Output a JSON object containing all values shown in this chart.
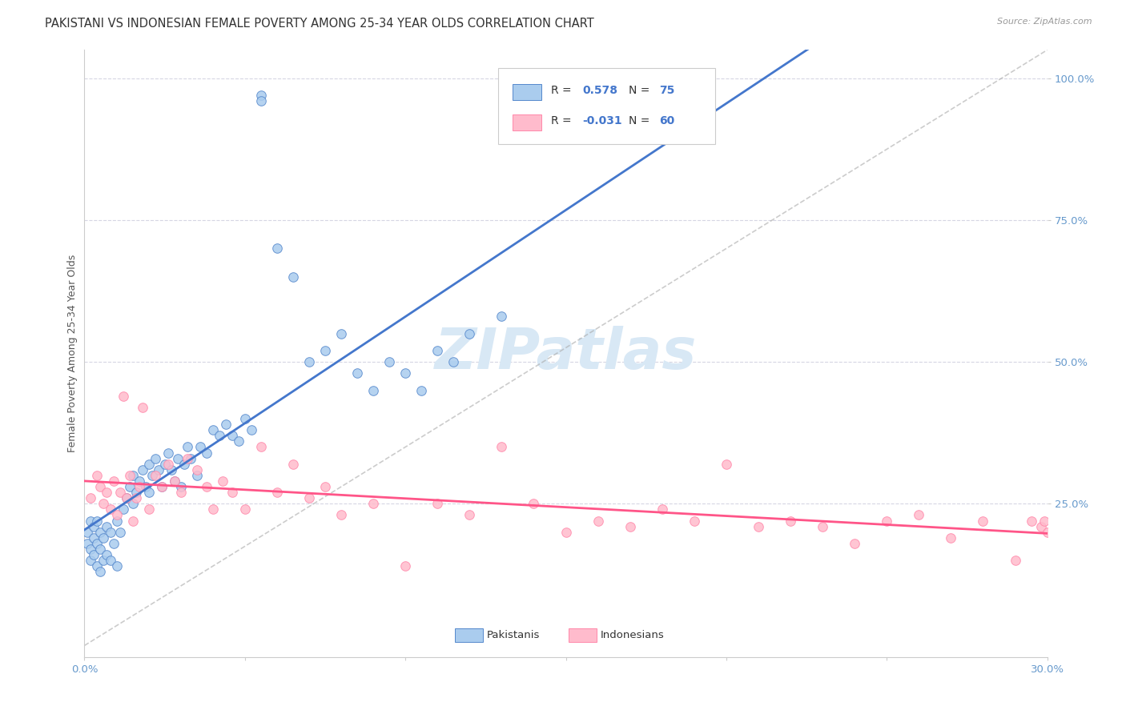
{
  "title": "PAKISTANI VS INDONESIAN FEMALE POVERTY AMONG 25-34 YEAR OLDS CORRELATION CHART",
  "source": "Source: ZipAtlas.com",
  "ylabel": "Female Poverty Among 25-34 Year Olds",
  "xlim": [
    0.0,
    0.3
  ],
  "ylim": [
    -0.02,
    1.05
  ],
  "blue_fill": "#AACCEE",
  "blue_edge": "#5588CC",
  "pink_fill": "#FFBBCC",
  "pink_edge": "#FF88AA",
  "blue_line": "#4477CC",
  "pink_line": "#FF5588",
  "diag_color": "#AAAAAA",
  "grid_color": "#CCCCDD",
  "tick_color": "#6699CC",
  "watermark_color": "#D8E8F5",
  "background": "#FFFFFF",
  "title_color": "#333333",
  "source_color": "#999999",
  "ylabel_color": "#555555",
  "legend_text_dark": "#333333",
  "legend_text_blue": "#4477CC",
  "title_fontsize": 10.5,
  "tick_fontsize": 9.5,
  "ylabel_fontsize": 9,
  "legend_fontsize": 10,
  "watermark_fontsize": 52,
  "scatter_size": 70,
  "line_width": 2.0
}
